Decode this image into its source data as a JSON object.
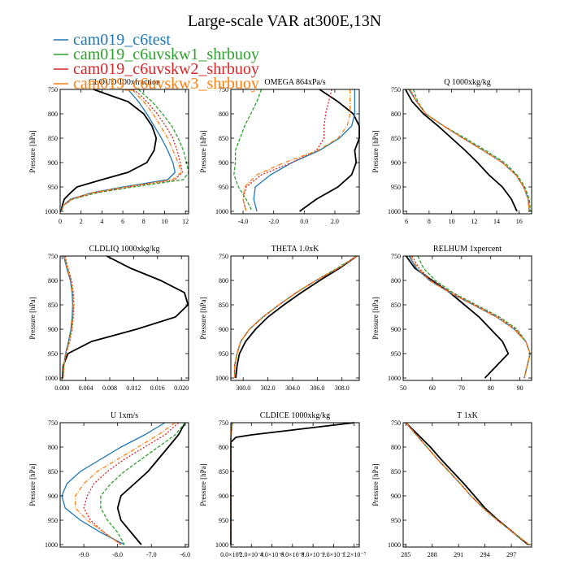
{
  "figure": {
    "title": "Large-scale VAR at300E,13N",
    "y_label": "Pressure [hPa]",
    "y_ticks": [
      750,
      800,
      850,
      900,
      950,
      1000
    ],
    "y_range": [
      750,
      1005
    ],
    "legend": [
      {
        "label": "cam019_c6test",
        "color": "#1f77b4"
      },
      {
        "label": "cam019_c6uvskw1_shrbuoy",
        "color": "#2ca02c"
      },
      {
        "label": "cam019_c6uvskw2_shrbuoy",
        "color": "#d62728"
      },
      {
        "label": "cam019_c6uvskw3_shrbuoy",
        "color": "#ff7f0e"
      }
    ],
    "series_colors": [
      "#000000",
      "#1f77b4",
      "#2ca02c",
      "#d62728",
      "#ff7f0e"
    ],
    "series_dash": [
      "",
      "",
      "4,2",
      "2,2",
      "5,2,1,2"
    ]
  },
  "chart_data": [
    {
      "type": "line",
      "title": "CLOUD 100xfraction",
      "xlim": [
        0,
        12.3
      ],
      "xticks": [
        0,
        2,
        4,
        6,
        8,
        10,
        12
      ],
      "xtick_labels": [
        "0",
        "2",
        "4",
        "6",
        "8",
        "10",
        "12"
      ],
      "y": [
        750,
        760,
        775,
        800,
        825,
        850,
        875,
        900,
        920,
        935,
        950,
        962,
        975,
        988,
        1000
      ],
      "series": [
        {
          "values": [
            3.2,
            4.5,
            6.5,
            8.0,
            8.8,
            9.2,
            9.0,
            8.3,
            6.5,
            4.0,
            1.6,
            1.0,
            0.4,
            0.2,
            0.1
          ]
        },
        {
          "values": [
            6.5,
            6.9,
            7.5,
            8.3,
            9.0,
            9.7,
            10.3,
            10.8,
            11.0,
            10.3,
            6.0,
            3.0,
            1.0,
            0.3,
            0.1
          ]
        },
        {
          "values": [
            7.5,
            8.0,
            8.8,
            9.8,
            10.7,
            11.3,
            11.8,
            12.1,
            12.3,
            11.8,
            7.0,
            3.5,
            1.2,
            0.3,
            0.1
          ]
        },
        {
          "values": [
            7.0,
            7.6,
            8.3,
            9.3,
            10.1,
            10.8,
            11.2,
            11.5,
            11.7,
            11.0,
            6.5,
            3.2,
            1.1,
            0.3,
            0.1
          ]
        },
        {
          "values": [
            6.9,
            7.3,
            8.0,
            8.9,
            9.6,
            10.3,
            10.8,
            11.3,
            11.6,
            10.8,
            6.3,
            3.1,
            1.1,
            0.3,
            0.1
          ]
        }
      ]
    },
    {
      "type": "line",
      "title": "OMEGA 864xPa/s",
      "xlim": [
        -4.8,
        3.6
      ],
      "xticks": [
        -4,
        -2,
        0,
        2
      ],
      "xtick_labels": [
        "-4.0",
        "-2.0",
        "0.0",
        "2.0"
      ],
      "y": [
        750,
        775,
        800,
        825,
        850,
        875,
        900,
        925,
        950,
        975,
        1000
      ],
      "series": [
        {
          "values": [
            1.0,
            2.2,
            3.2,
            3.6,
            3.6,
            3.3,
            3.4,
            3.1,
            2.2,
            0.8,
            -0.3
          ]
        },
        {
          "values": [
            3.3,
            3.3,
            3.3,
            3.1,
            2.3,
            1.0,
            -0.8,
            -2.2,
            -3.2,
            -3.3,
            -3.1
          ]
        },
        {
          "values": [
            -2.8,
            -3.1,
            -3.5,
            -3.9,
            -4.2,
            -4.5,
            -4.5,
            -4.6,
            -4.3,
            -3.8,
            -3.4
          ]
        },
        {
          "values": [
            1.8,
            1.6,
            1.4,
            1.3,
            1.3,
            0.8,
            -0.8,
            -2.8,
            -3.8,
            -4.0,
            -3.8
          ]
        },
        {
          "values": [
            3.0,
            3.0,
            3.0,
            2.8,
            2.2,
            0.9,
            -1.3,
            -3.1,
            -3.9,
            -4.0,
            -3.8
          ]
        }
      ]
    },
    {
      "type": "line",
      "title": "Q 1000xkg/kg",
      "xlim": [
        5.7,
        17.1
      ],
      "xticks": [
        6,
        8,
        10,
        12,
        14,
        16
      ],
      "xtick_labels": [
        "6",
        "8",
        "10",
        "12",
        "14",
        "16"
      ],
      "y": [
        750,
        775,
        800,
        825,
        850,
        875,
        900,
        925,
        950,
        975,
        1000
      ],
      "series": [
        {
          "values": [
            5.9,
            6.5,
            7.5,
            8.8,
            10.0,
            11.2,
            12.3,
            13.3,
            14.5,
            15.3,
            15.8
          ]
        },
        {
          "values": [
            6.2,
            6.9,
            7.7,
            9.3,
            11.0,
            12.8,
            14.5,
            15.7,
            16.4,
            16.8,
            16.9
          ]
        },
        {
          "values": [
            6.6,
            7.0,
            7.7,
            9.3,
            11.2,
            13.0,
            14.7,
            15.8,
            16.5,
            16.9,
            17.0
          ]
        },
        {
          "values": [
            6.3,
            6.9,
            7.7,
            9.3,
            11.0,
            12.8,
            14.5,
            15.7,
            16.4,
            16.8,
            16.9
          ]
        },
        {
          "values": [
            6.3,
            6.9,
            7.7,
            9.3,
            11.0,
            12.8,
            14.5,
            15.7,
            16.4,
            16.8,
            16.9
          ]
        }
      ]
    },
    {
      "type": "line",
      "title": "CLDLIQ 1000xkg/kg",
      "xlim": [
        -0.0003,
        0.0212
      ],
      "xticks": [
        0,
        0.004,
        0.008,
        0.012,
        0.016,
        0.02
      ],
      "xtick_labels": [
        "0.000",
        "0.004",
        "0.008",
        "0.012",
        "0.016",
        "0.020"
      ],
      "y": [
        750,
        775,
        800,
        825,
        850,
        875,
        900,
        925,
        950,
        975,
        1000
      ],
      "series": [
        {
          "values": [
            0.0075,
            0.0115,
            0.0165,
            0.0205,
            0.0211,
            0.019,
            0.0125,
            0.005,
            0.001,
            0.0002,
            0.0001
          ]
        },
        {
          "values": [
            0.0003,
            0.0008,
            0.0014,
            0.0017,
            0.0018,
            0.0017,
            0.0015,
            0.0011,
            0.0006,
            0.0003,
            0.0002
          ]
        },
        {
          "values": [
            0.0004,
            0.0009,
            0.0015,
            0.0018,
            0.0019,
            0.0018,
            0.0016,
            0.0012,
            0.0007,
            0.0003,
            0.0002
          ]
        },
        {
          "values": [
            0.0005,
            0.001,
            0.0016,
            0.0019,
            0.002,
            0.0019,
            0.0017,
            0.0013,
            0.0007,
            0.0003,
            0.0002
          ]
        },
        {
          "values": [
            0.0004,
            0.0009,
            0.0015,
            0.0018,
            0.0019,
            0.0018,
            0.0016,
            0.0012,
            0.0007,
            0.0003,
            0.0002
          ]
        }
      ]
    },
    {
      "type": "line",
      "title": "THETA 1.0xK",
      "xlim": [
        299.0,
        309.4
      ],
      "xticks": [
        300,
        302,
        304,
        306,
        308
      ],
      "xtick_labels": [
        "300.0",
        "302.0",
        "304.0",
        "306.0",
        "308.0"
      ],
      "y": [
        750,
        775,
        800,
        825,
        850,
        875,
        900,
        925,
        950,
        975,
        1000
      ],
      "series": [
        {
          "values": [
            309.2,
            307.8,
            306.2,
            304.7,
            303.3,
            302.0,
            301.0,
            300.2,
            299.7,
            299.5,
            299.4
          ]
        },
        {
          "values": [
            309.2,
            307.7,
            305.9,
            304.3,
            302.9,
            301.6,
            300.5,
            299.8,
            299.5,
            299.3,
            299.3
          ]
        },
        {
          "values": [
            309.2,
            307.6,
            305.9,
            304.3,
            302.9,
            301.6,
            300.5,
            299.8,
            299.5,
            299.3,
            299.3
          ]
        },
        {
          "values": [
            309.2,
            307.7,
            305.9,
            304.3,
            302.9,
            301.6,
            300.5,
            299.8,
            299.5,
            299.3,
            299.3
          ]
        },
        {
          "values": [
            309.2,
            307.7,
            305.9,
            304.3,
            302.9,
            301.6,
            300.5,
            299.8,
            299.5,
            299.3,
            299.3
          ]
        }
      ]
    },
    {
      "type": "line",
      "title": "RELHUM 1xpercent",
      "xlim": [
        50,
        94
      ],
      "xticks": [
        50,
        60,
        70,
        80,
        90
      ],
      "xtick_labels": [
        "50",
        "60",
        "70",
        "80",
        "90"
      ],
      "y": [
        750,
        775,
        800,
        825,
        850,
        875,
        900,
        925,
        950,
        975,
        1000
      ],
      "series": [
        {
          "values": [
            51.0,
            54.0,
            60.0,
            66.0,
            71.0,
            76.0,
            80.0,
            84.0,
            86.0,
            82.0,
            78.0
          ]
        },
        {
          "values": [
            52.0,
            54.5,
            59.0,
            66.0,
            74.0,
            82.0,
            88.0,
            92.0,
            93.5,
            92.5,
            91.5
          ]
        },
        {
          "values": [
            55.0,
            57.0,
            61.0,
            67.0,
            75.0,
            83.0,
            89.0,
            92.0,
            93.5,
            92.5,
            91.5
          ]
        },
        {
          "values": [
            53.0,
            55.5,
            59.5,
            66.5,
            74.5,
            82.5,
            88.5,
            92.0,
            93.5,
            92.5,
            91.5
          ]
        },
        {
          "values": [
            52.5,
            55.0,
            59.0,
            66.0,
            74.0,
            82.0,
            88.0,
            92.0,
            93.5,
            92.5,
            91.5
          ]
        }
      ]
    },
    {
      "type": "line",
      "title": "U 1xm/s",
      "xlim": [
        -9.7,
        -5.9
      ],
      "xticks": [
        -9,
        -8,
        -7,
        -6
      ],
      "xtick_labels": [
        "-9.0",
        "-8.0",
        "-7.0",
        "-6.0"
      ],
      "y": [
        750,
        775,
        800,
        825,
        850,
        875,
        900,
        925,
        950,
        975,
        1000
      ],
      "series": [
        {
          "values": [
            -6.0,
            -6.2,
            -6.5,
            -6.8,
            -7.1,
            -7.5,
            -7.9,
            -8.0,
            -7.9,
            -7.6,
            -7.3
          ]
        },
        {
          "values": [
            -6.6,
            -7.2,
            -7.9,
            -8.5,
            -9.1,
            -9.5,
            -9.65,
            -9.55,
            -9.1,
            -8.5,
            -7.8
          ]
        },
        {
          "values": [
            -6.0,
            -6.3,
            -6.8,
            -7.3,
            -7.8,
            -8.2,
            -8.5,
            -8.5,
            -8.3,
            -8.0,
            -7.8
          ]
        },
        {
          "values": [
            -6.2,
            -6.6,
            -7.2,
            -7.8,
            -8.3,
            -8.7,
            -8.9,
            -9.0,
            -8.8,
            -8.4,
            -7.9
          ]
        },
        {
          "values": [
            -6.3,
            -6.8,
            -7.4,
            -8.0,
            -8.6,
            -9.0,
            -9.25,
            -9.25,
            -8.9,
            -8.4,
            -7.9
          ]
        }
      ]
    },
    {
      "type": "line",
      "title": "CLDICE 1000xkg/kg",
      "xlim": [
        0,
        1.25e-07
      ],
      "xticks": [
        0,
        2e-08,
        4e-08,
        6e-08,
        8e-08,
        1e-07,
        1.2e-07
      ],
      "xtick_labels": [
        "0.0×10⁰",
        "2.0×10⁻⁸",
        "4.0×10⁻⁸",
        "6.0×10⁻⁸",
        "8.0×10⁻⁸",
        "1.0×10⁻⁷",
        "1.2×10⁻⁷"
      ],
      "y": [
        750,
        760,
        775,
        780,
        790,
        800,
        850,
        900,
        950,
        1000
      ],
      "series": [
        {
          "values": [
            1.2e-07,
            8e-08,
            2e-08,
            5e-09,
            0,
            0,
            0,
            0,
            0,
            0
          ]
        },
        {
          "values": [
            1e-09,
            5e-10,
            2e-10,
            0,
            0,
            0,
            0,
            0,
            0,
            0
          ]
        },
        {
          "values": [
            2e-09,
            1e-09,
            3e-10,
            0,
            0,
            0,
            0,
            0,
            0,
            0
          ]
        },
        {
          "values": [
            1.5e-09,
            8e-10,
            3e-10,
            0,
            0,
            0,
            0,
            0,
            0,
            0
          ]
        },
        {
          "values": [
            1.5e-09,
            8e-10,
            3e-10,
            0,
            0,
            0,
            0,
            0,
            0,
            0
          ]
        }
      ]
    },
    {
      "type": "line",
      "title": "T 1xK",
      "xlim": [
        284.7,
        299.3
      ],
      "xticks": [
        285,
        288,
        291,
        294,
        297
      ],
      "xtick_labels": [
        "285",
        "288",
        "291",
        "294",
        "297"
      ],
      "y": [
        750,
        775,
        800,
        825,
        850,
        875,
        900,
        925,
        950,
        975,
        1000
      ],
      "series": [
        {
          "values": [
            285.0,
            286.4,
            287.8,
            289.0,
            290.3,
            291.6,
            292.8,
            294.0,
            295.5,
            297.2,
            298.9
          ]
        },
        {
          "values": [
            285.0,
            286.2,
            287.4,
            288.6,
            289.9,
            291.2,
            292.4,
            293.8,
            295.4,
            297.2,
            299.0
          ]
        },
        {
          "values": [
            285.0,
            286.2,
            287.4,
            288.6,
            289.9,
            291.2,
            292.4,
            293.8,
            295.4,
            297.2,
            299.0
          ]
        },
        {
          "values": [
            285.0,
            286.2,
            287.4,
            288.6,
            289.9,
            291.2,
            292.4,
            293.8,
            295.4,
            297.2,
            299.0
          ]
        },
        {
          "values": [
            285.0,
            286.2,
            287.4,
            288.6,
            289.9,
            291.2,
            292.4,
            293.8,
            295.4,
            297.2,
            299.0
          ]
        }
      ]
    }
  ]
}
